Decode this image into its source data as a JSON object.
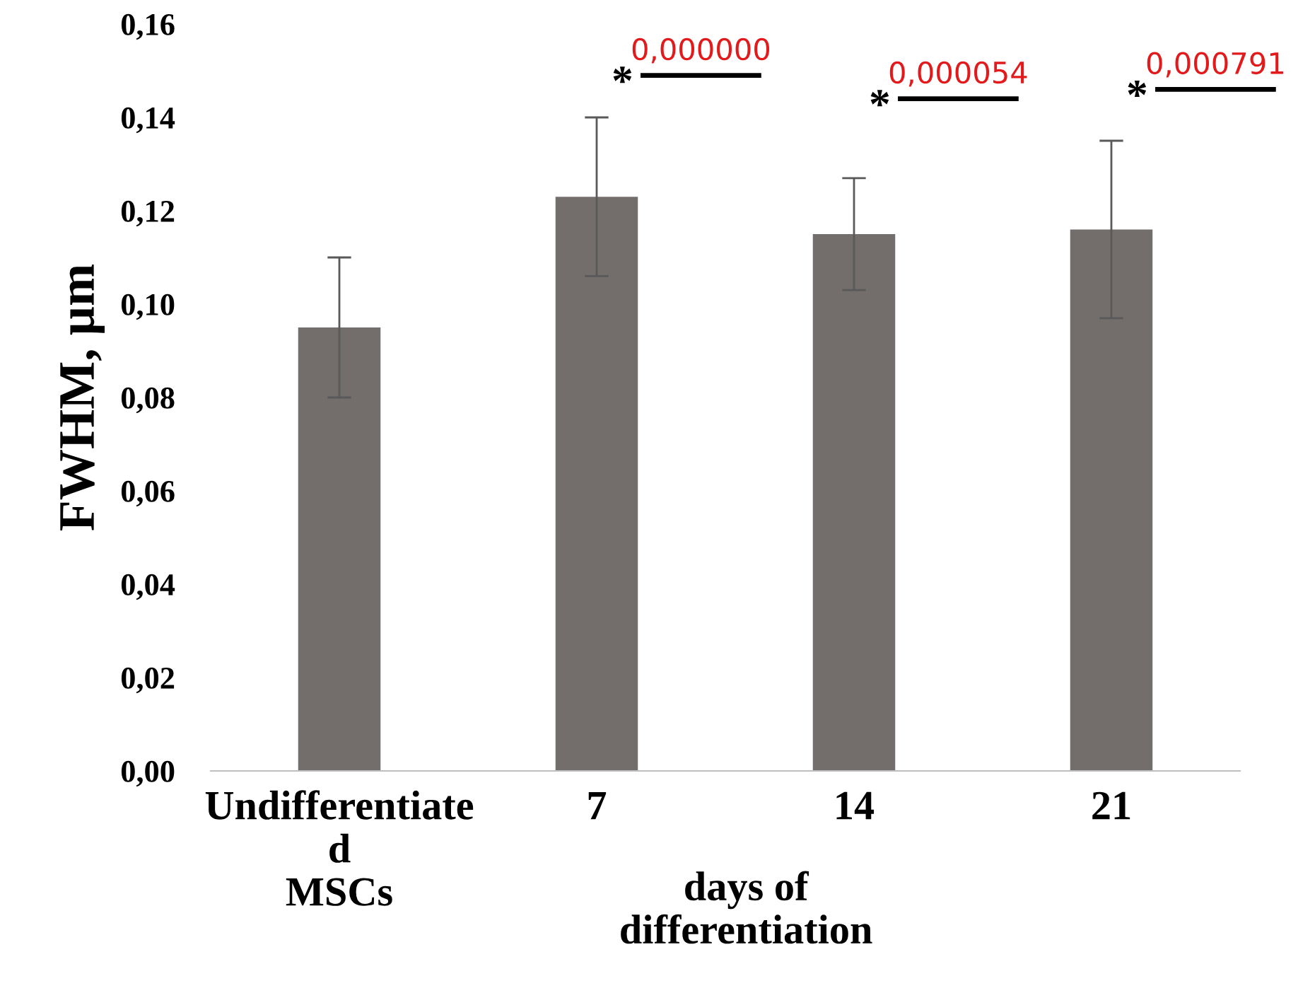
{
  "chart_data": {
    "type": "bar",
    "ylabel": "FWHM, µm",
    "xlabel": "days of\ndifferentiation",
    "categories": [
      "Undifferentiate\nd\nMSCs",
      "7",
      "14",
      "21"
    ],
    "values": [
      0.095,
      0.123,
      0.115,
      0.116
    ],
    "color": "#736e6c",
    "errors": [
      0.015,
      0.017,
      0.012,
      0.019
    ],
    "ylim": [
      0,
      0.16
    ],
    "yticks": [
      {
        "value": 0,
        "label": "0,00"
      },
      {
        "value": 0.02,
        "label": "0,02"
      },
      {
        "value": 0.04,
        "label": "0,04"
      },
      {
        "value": 0.06,
        "label": "0,06"
      },
      {
        "value": 0.08,
        "label": "0,08"
      },
      {
        "value": 0.1,
        "label": "0,10"
      },
      {
        "value": 0.12,
        "label": "0,12"
      },
      {
        "value": 0.14,
        "label": "0,14"
      },
      {
        "value": 0.16,
        "label": "0,16"
      }
    ],
    "grid": false,
    "legend": false,
    "annotations": [
      "*",
      "0,000000",
      "*",
      "0,000054",
      "*",
      "0,000791"
    ]
  }
}
